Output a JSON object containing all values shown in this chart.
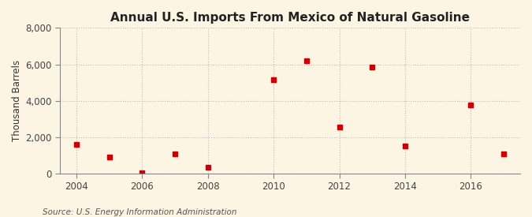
{
  "title": "Annual U.S. Imports From Mexico of Natural Gasoline",
  "ylabel": "Thousand Barrels",
  "source": "Source: U.S. Energy Information Administration",
  "background_color": "#fdf5e4",
  "years": [
    2004,
    2005,
    2006,
    2007,
    2008,
    2010,
    2011,
    2012,
    2013,
    2014,
    2016,
    2017
  ],
  "values": [
    1600,
    900,
    30,
    1100,
    350,
    5150,
    6200,
    2550,
    5850,
    1500,
    3750,
    1100
  ],
  "marker_color": "#cc0000",
  "marker": "s",
  "marker_size": 4,
  "ylim": [
    0,
    8000
  ],
  "yticks": [
    0,
    2000,
    4000,
    6000,
    8000
  ],
  "xlim": [
    2003.5,
    2017.5
  ],
  "xticks": [
    2004,
    2006,
    2008,
    2010,
    2012,
    2014,
    2016
  ],
  "grid_color": "#bbbbbb",
  "grid_style": ":",
  "title_fontsize": 11,
  "label_fontsize": 8.5,
  "tick_fontsize": 8.5,
  "source_fontsize": 7.5
}
